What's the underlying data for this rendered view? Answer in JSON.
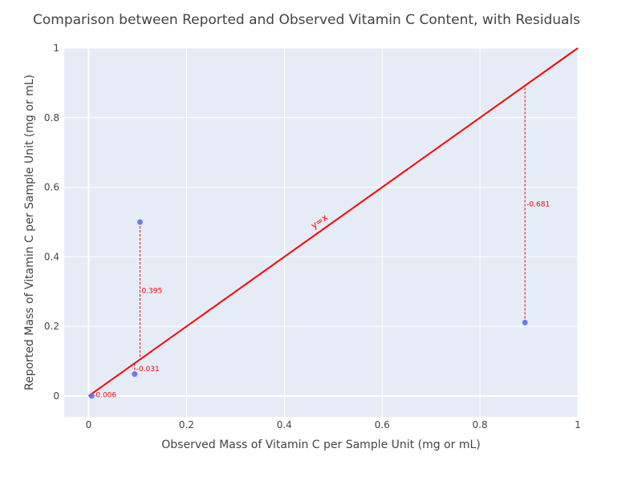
{
  "colors": {
    "plot_bg": "#e5ecf6",
    "grid": "#ffffff",
    "points": "#636efa",
    "reference_line": "#ff0000",
    "residual": "#ff0000",
    "text": "#444444"
  },
  "chart_data": {
    "type": "scatter",
    "title": "Comparison between Reported and Observed Vitamin C Content, with Residuals",
    "xlabel": "Observed Mass of Vitamin C per Sample Unit (mg or mL)",
    "ylabel": "Reported Mass of Vitamin C per Sample Unit (mg or mL)",
    "xlim": [
      -0.05,
      1
    ],
    "ylim": [
      -0.06,
      1
    ],
    "xticks": [
      0,
      0.2,
      0.4,
      0.6,
      0.8,
      1
    ],
    "xtick_labels": [
      "0",
      "0.2",
      "0.4",
      "0.6",
      "0.8",
      "1"
    ],
    "yticks": [
      0,
      0.2,
      0.4,
      0.6,
      0.8,
      1
    ],
    "ytick_labels": [
      "0",
      "0.2",
      "0.4",
      "0.6",
      "0.8",
      "1"
    ],
    "grid": true,
    "reference_line": {
      "label": "y=x",
      "label_pos": [
        0.475,
        0.495
      ],
      "points": [
        [
          0,
          0
        ],
        [
          1,
          1
        ]
      ]
    },
    "points": [
      {
        "x": 0.006,
        "y": 0.0,
        "residual_label": "-0.006"
      },
      {
        "x": 0.094,
        "y": 0.063,
        "residual_label": "-0.031"
      },
      {
        "x": 0.105,
        "y": 0.5,
        "residual_label": "0.395"
      },
      {
        "x": 0.892,
        "y": 0.211,
        "residual_label": "-0.681"
      }
    ]
  }
}
